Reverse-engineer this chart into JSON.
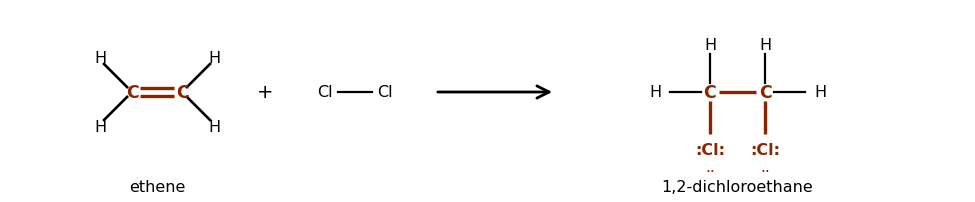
{
  "bg_color": "#ffffff",
  "black": "#000000",
  "red": "#8B2500",
  "ethene_label": "ethene",
  "product_label": "1,2-dichloroethane",
  "plus_sign": "+",
  "figsize": [
    9.75,
    2.03
  ],
  "dpi": 100,
  "xlim": [
    0,
    9.75
  ],
  "ylim": [
    0,
    2.03
  ]
}
